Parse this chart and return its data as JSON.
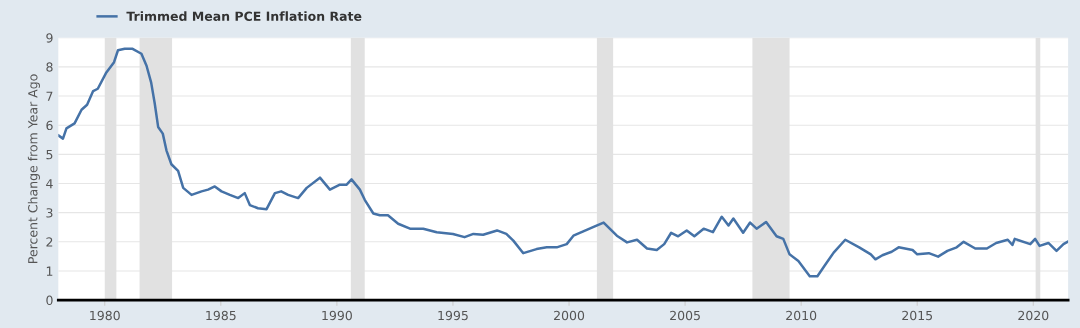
{
  "chart_data": {
    "type": "line",
    "ylabel": "Percent Change from Year Ago",
    "x": [
      1978.0,
      1978.2,
      1978.35,
      1978.7,
      1979.0,
      1979.24,
      1979.5,
      1979.7,
      1980.07,
      1980.4,
      1980.57,
      1980.86,
      1981.2,
      1981.58,
      1981.8,
      1982.0,
      1982.15,
      1982.3,
      1982.5,
      1982.66,
      1982.87,
      1983.16,
      1983.38,
      1983.74,
      1984.17,
      1984.45,
      1984.74,
      1985.03,
      1985.39,
      1985.75,
      1986.03,
      1986.25,
      1986.6,
      1986.97,
      1987.33,
      1987.6,
      1987.9,
      1988.33,
      1988.7,
      1989.27,
      1989.7,
      1990.13,
      1990.42,
      1990.63,
      1990.99,
      1991.2,
      1991.57,
      1991.85,
      1992.2,
      1992.64,
      1993.15,
      1993.72,
      1994.3,
      1995.0,
      1995.5,
      1995.88,
      1996.3,
      1996.9,
      1997.3,
      1997.6,
      1998.03,
      1998.6,
      1999.04,
      1999.47,
      1999.9,
      2000.19,
      2001.06,
      2001.49,
      2002.06,
      2002.5,
      2002.93,
      2003.36,
      2003.78,
      2004.1,
      2004.4,
      2004.7,
      2005.07,
      2005.4,
      2005.8,
      2006.2,
      2006.58,
      2006.87,
      2007.08,
      2007.5,
      2007.8,
      2008.08,
      2008.49,
      2008.94,
      2009.23,
      2009.5,
      2009.88,
      2010.37,
      2010.7,
      2011.0,
      2011.4,
      2011.9,
      2012.5,
      2013.0,
      2013.2,
      2013.5,
      2013.9,
      2014.2,
      2014.8,
      2015.0,
      2015.5,
      2015.9,
      2016.3,
      2016.7,
      2017.0,
      2017.5,
      2018.0,
      2018.4,
      2018.9,
      2019.1,
      2019.2,
      2019.87,
      2020.08,
      2020.27,
      2020.65,
      2021.0,
      2021.3,
      2021.48
    ],
    "series": [
      {
        "name": "Trimmed Mean PCE Inflation Rate",
        "color": "#4572a7",
        "values": [
          5.65,
          5.54,
          5.89,
          6.06,
          6.53,
          6.7,
          7.17,
          7.25,
          7.81,
          8.16,
          8.57,
          8.62,
          8.62,
          8.45,
          8.04,
          7.46,
          6.76,
          5.94,
          5.71,
          5.13,
          4.66,
          4.43,
          3.85,
          3.61,
          3.73,
          3.79,
          3.9,
          3.73,
          3.61,
          3.5,
          3.67,
          3.26,
          3.15,
          3.12,
          3.67,
          3.73,
          3.61,
          3.5,
          3.85,
          4.2,
          3.79,
          3.96,
          3.96,
          4.14,
          3.79,
          3.44,
          2.97,
          2.91,
          2.91,
          2.62,
          2.45,
          2.45,
          2.33,
          2.27,
          2.16,
          2.27,
          2.24,
          2.39,
          2.27,
          2.04,
          1.61,
          1.75,
          1.81,
          1.81,
          1.92,
          2.21,
          2.51,
          2.66,
          2.21,
          1.98,
          2.07,
          1.77,
          1.72,
          1.92,
          2.31,
          2.19,
          2.39,
          2.19,
          2.45,
          2.33,
          2.86,
          2.56,
          2.8,
          2.31,
          2.66,
          2.45,
          2.68,
          2.19,
          2.1,
          1.57,
          1.34,
          0.82,
          0.82,
          1.17,
          1.63,
          2.07,
          1.81,
          1.57,
          1.4,
          1.54,
          1.66,
          1.81,
          1.72,
          1.57,
          1.61,
          1.49,
          1.69,
          1.81,
          2.0,
          1.77,
          1.77,
          1.96,
          2.07,
          1.89,
          2.1,
          1.92,
          2.1,
          1.86,
          1.96,
          1.69,
          1.92,
          2.0
        ]
      }
    ],
    "bands": [
      {
        "axis": "x",
        "from": 1980.0,
        "to": 1980.5,
        "color": "#e1e1e1"
      },
      {
        "axis": "x",
        "from": 1981.5,
        "to": 1982.9,
        "color": "#e1e1e1"
      },
      {
        "axis": "x",
        "from": 1990.6,
        "to": 1991.2,
        "color": "#e1e1e1"
      },
      {
        "axis": "x",
        "from": 2001.2,
        "to": 2001.9,
        "color": "#e1e1e1"
      },
      {
        "axis": "x",
        "from": 2007.9,
        "to": 2009.5,
        "color": "#e1e1e1"
      },
      {
        "axis": "x",
        "from": 2020.1,
        "to": 2020.3,
        "color": "#e1e1e1"
      }
    ],
    "xlim": [
      1978,
      2021.5
    ],
    "xticks": [
      1980,
      1985,
      1990,
      1995,
      2000,
      2005,
      2010,
      2015,
      2020
    ],
    "ylim": [
      0,
      9
    ],
    "yticks": [
      0,
      1,
      2,
      3,
      4,
      5,
      6,
      7,
      8,
      9
    ],
    "grid": "y",
    "legend": "top left",
    "marker": "none",
    "line_style": "solid"
  }
}
